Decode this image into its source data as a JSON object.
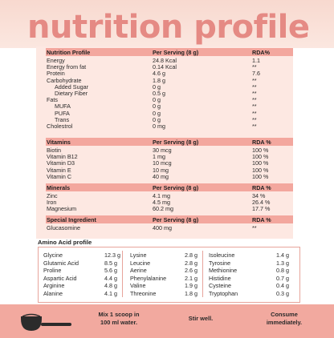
{
  "title": "nutrition profile",
  "colors": {
    "title": "#e58a84",
    "section_band": "#f3a79e",
    "panel": "#fde8e2",
    "footer": "#f2a99f"
  },
  "nutrition": {
    "header": [
      "Nutrition Profile",
      "Per Serving (8 g)",
      "RDA%"
    ],
    "rows": [
      {
        "name": "Energy",
        "value": "24.8 Kcal",
        "rda": "1.1"
      },
      {
        "name": "Energy from fat",
        "value": "0.14 Kcal",
        "rda": "**"
      },
      {
        "name": "Protein",
        "value": "4.6 g",
        "rda": "7.6"
      },
      {
        "name": "Carbohydrate",
        "value": "1.8 g",
        "rda": "**"
      },
      {
        "name": "Added Sugar",
        "value": "0 g",
        "rda": "**"
      },
      {
        "name": "Dietary Fiber",
        "value": "0.5 g",
        "rda": "**"
      },
      {
        "name": "Fats",
        "value": "0 g",
        "rda": "**"
      },
      {
        "name": "MUFA",
        "value": "0 g",
        "rda": "**"
      },
      {
        "name": "PUFA",
        "value": "0 g",
        "rda": "**"
      },
      {
        "name": "Trans",
        "value": "0 g",
        "rda": "**"
      },
      {
        "name": "Cholestrol",
        "value": "0 mg",
        "rda": "**"
      }
    ]
  },
  "vitamins": {
    "header": [
      "Vitamins",
      "Per Serving (8 g)",
      "RDA %"
    ],
    "rows": [
      {
        "name": "Biotin",
        "value": "30 mcg",
        "rda": "100 %"
      },
      {
        "name": "Vitamin B12",
        "value": "1 mg",
        "rda": "100 %"
      },
      {
        "name": "Vitamin D3",
        "value": "10 mcg",
        "rda": "100 %"
      },
      {
        "name": "Vitamin E",
        "value": "10 mg",
        "rda": "100 %"
      },
      {
        "name": "Vitamin C",
        "value": "40 mg",
        "rda": "100 %"
      }
    ]
  },
  "minerals": {
    "header": [
      "Minerals",
      "Per Serving (8 g)",
      "RDA %"
    ],
    "rows": [
      {
        "name": "Zinc",
        "value": "4.1 mg",
        "rda": "34 %"
      },
      {
        "name": "Iron",
        "value": "4.5 mg",
        "rda": "26.4 %"
      },
      {
        "name": "Magnesium",
        "value": "60.2 mg",
        "rda": "17.7 %"
      }
    ]
  },
  "special": {
    "header": [
      "Special Ingredient",
      "Per Serving (8 g)",
      "RDA %"
    ],
    "rows": [
      {
        "name": "Glucasomine",
        "value": "400 mg",
        "rda": "**"
      }
    ]
  },
  "amino": {
    "title": "Amino Acid profile",
    "columns": [
      [
        {
          "name": "Glycine",
          "value": "12.3 g"
        },
        {
          "name": "Glutamic Acid",
          "value": "8.5 g"
        },
        {
          "name": "Proline",
          "value": "5.6 g"
        },
        {
          "name": "Aspartic Acid",
          "value": "4.4 g"
        },
        {
          "name": "Arginine",
          "value": "4.8 g"
        },
        {
          "name": "Alanine",
          "value": "4.1 g"
        }
      ],
      [
        {
          "name": "Lysine",
          "value": "2.8 g"
        },
        {
          "name": "Leucine",
          "value": "2.8 g"
        },
        {
          "name": "Aerine",
          "value": "2.6 g"
        },
        {
          "name": "Phenylalanine",
          "value": "2.1 g"
        },
        {
          "name": "Valine",
          "value": "1.9 g"
        },
        {
          "name": "Threonine",
          "value": "1.8 g"
        }
      ],
      [
        {
          "name": "Isoleucine",
          "value": "1.4 g"
        },
        {
          "name": "Tyrosine",
          "value": "1.3 g"
        },
        {
          "name": "Methionine",
          "value": "0.8 g"
        },
        {
          "name": "Histidine",
          "value": "0.7 g"
        },
        {
          "name": "Cysteine",
          "value": "0.4 g"
        },
        {
          "name": "Tryptophan",
          "value": "0.3 g"
        }
      ]
    ]
  },
  "footer": {
    "step1_line1": "Mix 1 scoop in",
    "step1_line2": "100 ml water.",
    "step2": "Stir well.",
    "step3_line1": "Consume",
    "step3_line2": "immediately.",
    "icon": "scoop-icon"
  }
}
